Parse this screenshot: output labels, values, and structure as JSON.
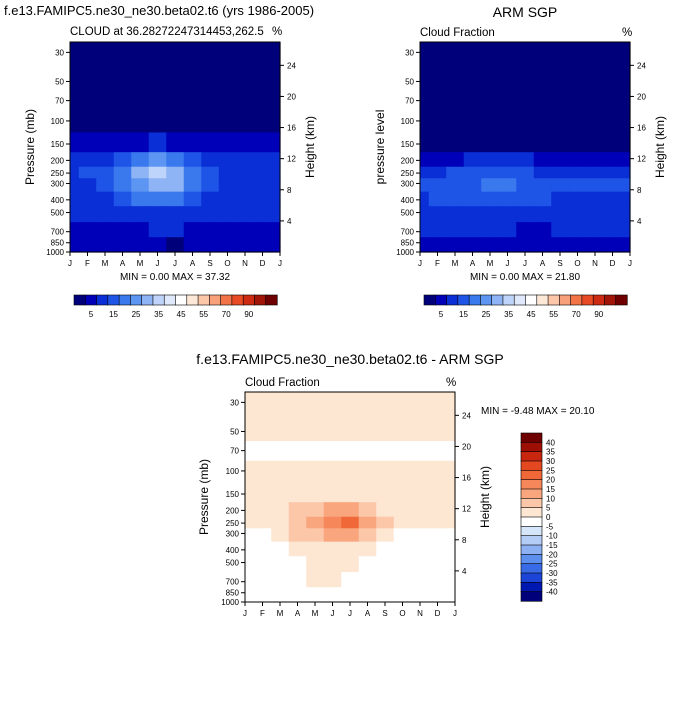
{
  "panels": [
    {
      "title": "f.e13.FAMIPC5.ne30_ne30.beta02.t6 (yrs 1986-2005)",
      "left_label": "CLOUD at 36.28272247314453,262.5",
      "right_label": "%",
      "ylabel_left": "Pressure (mb)",
      "ylabel_right": "Height (km)",
      "stats": "MIN =   0.00 MAX =  37.32"
    },
    {
      "title": "ARM SGP",
      "left_label": "Cloud Fraction",
      "right_label": "%",
      "ylabel_left": "pressure level",
      "ylabel_right": "Height (km)",
      "stats": "MIN =   0.00 MAX =  21.80"
    },
    {
      "title": "f.e13.FAMIPC5.ne30_ne30.beta02.t6 - ARM SGP",
      "left_label": "Cloud Fraction",
      "right_label": "%",
      "ylabel_left": "Pressure (mb)",
      "ylabel_right": "Height (km)",
      "stats": "MIN =  -9.48 MAX =  20.10"
    }
  ],
  "axes": {
    "months": [
      "J",
      "F",
      "M",
      "A",
      "M",
      "J",
      "J",
      "A",
      "S",
      "O",
      "N",
      "D",
      "J"
    ],
    "pressure_ticks": [
      "30",
      "50",
      "70",
      "100",
      "150",
      "200",
      "250",
      "300",
      "400",
      "500",
      "700",
      "850",
      "1000"
    ],
    "height_ticks_top": [
      "24",
      "20",
      "16",
      "12",
      "8",
      "4"
    ],
    "height_ticks_bottom": [
      "24",
      "20",
      "16",
      "12",
      "8",
      "4"
    ]
  },
  "colorbars": {
    "abs_labels": [
      "5",
      "15",
      "25",
      "35",
      "45",
      "55",
      "70",
      "90"
    ],
    "abs_colors": [
      "#00007a",
      "#0000b8",
      "#0a2fd6",
      "#1f55e6",
      "#3a78ee",
      "#5d96f2",
      "#8eb4f5",
      "#bed4fa",
      "#dfe9fb",
      "#ffffff",
      "#fde7d7",
      "#fbc7a8",
      "#f8a07a",
      "#f37348",
      "#e84a25",
      "#cc2a12",
      "#a01508",
      "#6e0000"
    ],
    "diff_labels": [
      "40",
      "35",
      "30",
      "25",
      "20",
      "15",
      "10",
      "5",
      "0",
      "-5",
      "-10",
      "-15",
      "-20",
      "-25",
      "-30",
      "-35",
      "-40"
    ],
    "diff_colors": [
      "#6e0000",
      "#9e1005",
      "#c9260f",
      "#e34820",
      "#f16838",
      "#f6875a",
      "#f9a67e",
      "#fbc7a8",
      "#fde6d2",
      "#ffffff",
      "#d6e6fa",
      "#b3cdf6",
      "#8db0f2",
      "#5d8fee",
      "#3a6be6",
      "#1c45d8",
      "#0018b0",
      "#00007a"
    ]
  },
  "chart_data": [
    {
      "type": "heatmap",
      "title": "f.e13.FAMIPC5.ne30_ne30.beta02.t6 (yrs 1986-2005)",
      "variable": "CLOUD at 36.28272247314453,262.5",
      "units": "%",
      "x": [
        "J",
        "F",
        "M",
        "A",
        "M",
        "J",
        "J",
        "A",
        "S",
        "O",
        "N",
        "D",
        "J"
      ],
      "y_pressure_mb": [
        30,
        50,
        70,
        100,
        150,
        200,
        250,
        300,
        400,
        500,
        700,
        850,
        1000
      ],
      "y_height_km": [
        24,
        20,
        16,
        12,
        8,
        4
      ],
      "contour_levels": [
        5,
        10,
        15,
        20,
        25,
        30,
        35,
        40,
        45,
        50,
        55,
        60,
        70,
        80,
        90
      ],
      "min": 0.0,
      "max": 37.32,
      "grid": [
        [
          2,
          2,
          2,
          2,
          2,
          2,
          2,
          2,
          2,
          2,
          2,
          2,
          2
        ],
        [
          2,
          2,
          2,
          2,
          2,
          2,
          2,
          2,
          2,
          2,
          2,
          2,
          2
        ],
        [
          2,
          2,
          2,
          2,
          2,
          2,
          2,
          2,
          2,
          2,
          2,
          2,
          2
        ],
        [
          3,
          3,
          3,
          3,
          3,
          3,
          3,
          3,
          3,
          3,
          3,
          3,
          3
        ],
        [
          5,
          5,
          5,
          6,
          8,
          10,
          9,
          6,
          5,
          5,
          5,
          5,
          5
        ],
        [
          12,
          12,
          14,
          18,
          22,
          26,
          24,
          18,
          13,
          12,
          12,
          12,
          12
        ],
        [
          14,
          15,
          18,
          24,
          30,
          37,
          34,
          24,
          16,
          14,
          14,
          14,
          14
        ],
        [
          14,
          14,
          17,
          22,
          28,
          33,
          30,
          22,
          15,
          14,
          14,
          14,
          14
        ],
        [
          13,
          13,
          14,
          17,
          20,
          22,
          20,
          16,
          13,
          13,
          13,
          13,
          13
        ],
        [
          11,
          11,
          12,
          13,
          14,
          14,
          13,
          12,
          11,
          11,
          11,
          11,
          11
        ],
        [
          8,
          8,
          8,
          9,
          9,
          10,
          10,
          9,
          8,
          8,
          8,
          8,
          8
        ],
        [
          7,
          7,
          7,
          7,
          7,
          8,
          4,
          6,
          7,
          7,
          7,
          7,
          7
        ],
        [
          5,
          5,
          5,
          5,
          5,
          5,
          3,
          5,
          5,
          5,
          5,
          5,
          5
        ]
      ]
    },
    {
      "type": "heatmap",
      "title": "ARM SGP",
      "variable": "Cloud Fraction",
      "units": "%",
      "x": [
        "J",
        "F",
        "M",
        "A",
        "M",
        "J",
        "J",
        "A",
        "S",
        "O",
        "N",
        "D",
        "J"
      ],
      "y_pressure_mb": [
        30,
        50,
        70,
        100,
        150,
        200,
        250,
        300,
        400,
        500,
        700,
        850,
        1000
      ],
      "y_height_km": [
        24,
        20,
        16,
        12,
        8,
        4
      ],
      "contour_levels": [
        5,
        10,
        15,
        20,
        25,
        30,
        35,
        40,
        45,
        50,
        55,
        60,
        70,
        80,
        90
      ],
      "min": 0.0,
      "max": 21.8,
      "grid": [
        [
          1,
          1,
          1,
          1,
          1,
          1,
          1,
          1,
          1,
          1,
          1,
          1,
          1
        ],
        [
          1,
          1,
          1,
          1,
          1,
          1,
          1,
          1,
          1,
          1,
          1,
          1,
          1
        ],
        [
          1,
          1,
          1,
          1,
          1,
          1,
          1,
          1,
          1,
          1,
          1,
          1,
          1
        ],
        [
          2,
          2,
          2,
          2,
          2,
          2,
          2,
          2,
          2,
          2,
          2,
          2,
          2
        ],
        [
          4,
          4,
          4,
          4,
          4,
          4,
          4,
          4,
          4,
          4,
          4,
          4,
          4
        ],
        [
          8,
          8,
          9,
          10,
          10,
          11,
          10,
          9,
          8,
          8,
          8,
          8,
          8
        ],
        [
          13,
          14,
          15,
          16,
          17,
          17,
          16,
          14,
          13,
          13,
          13,
          13,
          13
        ],
        [
          16,
          17,
          18,
          19,
          20,
          21,
          19,
          17,
          15,
          15,
          15,
          16,
          16
        ],
        [
          14,
          15,
          16,
          17,
          18,
          18,
          17,
          15,
          14,
          14,
          14,
          14,
          14
        ],
        [
          12,
          13,
          13,
          14,
          14,
          14,
          13,
          12,
          12,
          12,
          12,
          12,
          12
        ],
        [
          11,
          11,
          12,
          12,
          12,
          10,
          8,
          9,
          10,
          11,
          11,
          11,
          11
        ],
        [
          9,
          9,
          9,
          9,
          9,
          8,
          7,
          8,
          9,
          9,
          9,
          9,
          9
        ],
        [
          6,
          6,
          6,
          6,
          6,
          6,
          5,
          6,
          6,
          6,
          6,
          6,
          6
        ]
      ]
    },
    {
      "type": "heatmap",
      "title": "f.e13.FAMIPC5.ne30_ne30.beta02.t6 - ARM SGP",
      "variable": "Cloud Fraction",
      "units": "%",
      "x": [
        "J",
        "F",
        "M",
        "A",
        "M",
        "J",
        "J",
        "A",
        "S",
        "O",
        "N",
        "D",
        "J"
      ],
      "y_pressure_mb": [
        30,
        50,
        70,
        100,
        150,
        200,
        250,
        300,
        400,
        500,
        700,
        850,
        1000
      ],
      "y_height_km": [
        24,
        20,
        16,
        12,
        8,
        4
      ],
      "contour_levels": [
        -40,
        -35,
        -30,
        -25,
        -20,
        -15,
        -10,
        -5,
        0,
        5,
        10,
        15,
        20,
        25,
        30,
        35,
        40
      ],
      "min": -9.48,
      "max": 20.1,
      "grid": [
        [
          1,
          1,
          1,
          1,
          1,
          1,
          1,
          1,
          1,
          1,
          1,
          1,
          1
        ],
        [
          1,
          1,
          1,
          1,
          1,
          1,
          1,
          1,
          1,
          1,
          1,
          1,
          1
        ],
        [
          -1,
          -1,
          -1,
          -1,
          -1,
          -1,
          -1,
          -1,
          -1,
          -1,
          -1,
          -1,
          -1
        ],
        [
          1,
          1,
          1,
          1,
          1,
          1,
          1,
          1,
          1,
          1,
          1,
          1,
          1
        ],
        [
          1,
          1,
          2,
          2,
          3,
          4,
          4,
          3,
          2,
          1,
          1,
          1,
          1
        ],
        [
          2,
          2,
          3,
          5,
          8,
          12,
          11,
          7,
          4,
          2,
          2,
          2,
          2
        ],
        [
          1,
          2,
          4,
          7,
          12,
          18,
          20,
          12,
          5,
          2,
          1,
          1,
          1
        ],
        [
          -2,
          -1,
          2,
          5,
          9,
          13,
          11,
          7,
          2,
          -1,
          -2,
          -2,
          -2
        ],
        [
          -2,
          -2,
          -1,
          1,
          2,
          4,
          3,
          2,
          -1,
          -2,
          -2,
          -2,
          -2
        ],
        [
          -2,
          -2,
          -2,
          -1,
          1,
          2,
          1,
          -1,
          -2,
          -2,
          -2,
          -2,
          -2
        ],
        [
          -3,
          -3,
          -3,
          -2,
          1,
          2,
          -1,
          -2,
          -3,
          -3,
          -3,
          -3,
          -3
        ],
        [
          -2,
          -2,
          -1,
          -1,
          -1,
          -1,
          -2,
          -1,
          -2,
          -2,
          -2,
          -2,
          -2
        ],
        [
          -1,
          -1,
          -1,
          -1,
          -1,
          -1,
          -1,
          -1,
          -1,
          -1,
          -1,
          -1,
          -1
        ]
      ]
    }
  ]
}
